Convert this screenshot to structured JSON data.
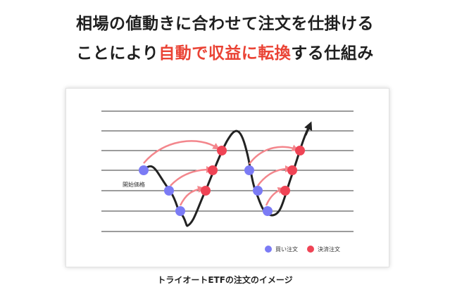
{
  "headline": {
    "line1": "相場の値動きに合わせて注文を仕掛ける",
    "line2_prefix": "ことにより",
    "line2_highlight": "自動で収益に転換",
    "line2_suffix": "する仕組み"
  },
  "diagram": {
    "start_label": "開始価格",
    "legend": {
      "buy_label": "買い注文",
      "settle_label": "決済注文"
    },
    "caption": "トライオートETFの注文のイメージ"
  },
  "colors": {
    "accent": "#ea4335",
    "buy": "#7b7bf5",
    "settle": "#ef4455",
    "arrow": "#f3868c",
    "line": "#222222"
  }
}
